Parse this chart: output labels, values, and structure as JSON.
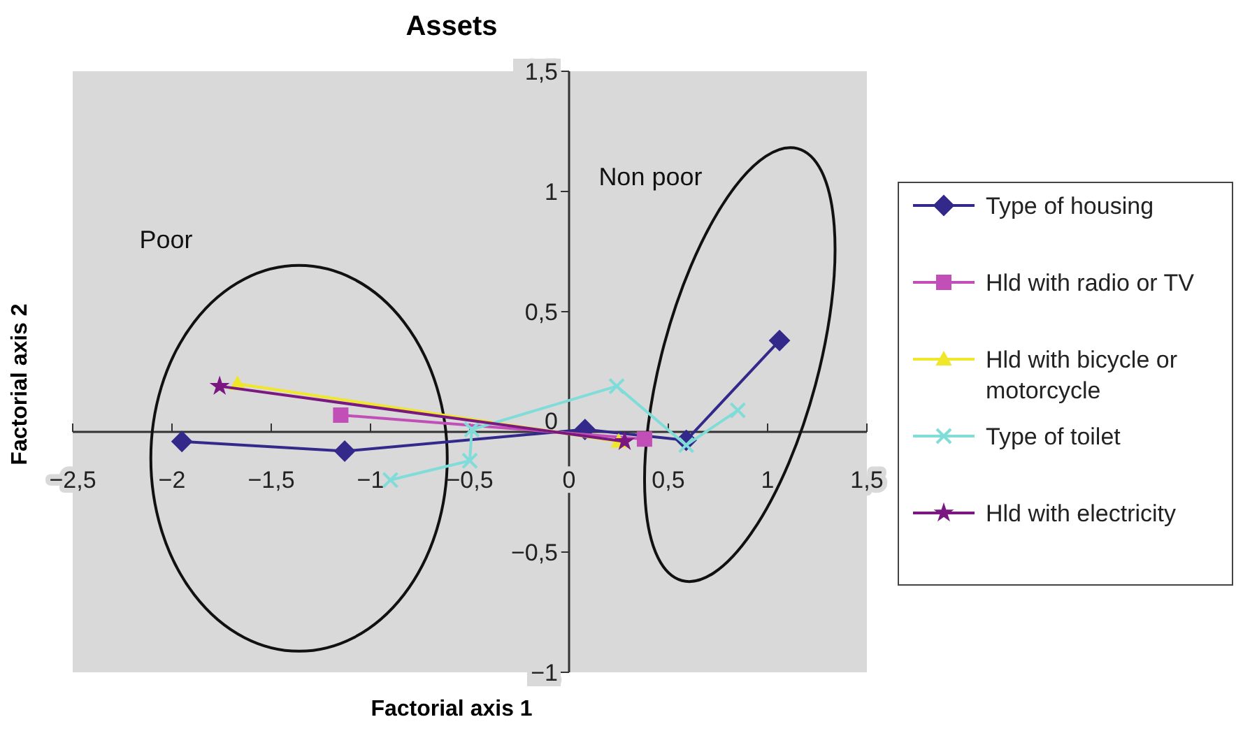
{
  "chart_data": {
    "type": "line",
    "title": "Assets",
    "xlabel": "Factorial axis 1",
    "ylabel": "Factorial axis 2",
    "annotations": [
      "Poor",
      "Non poor"
    ],
    "series": [
      {
        "name": "Type of housing",
        "color": "#33298a",
        "marker": "diamond",
        "x": [
          -1.95,
          -1.13,
          0.08,
          0.59,
          1.06
        ],
        "values": [
          -0.04,
          -0.08,
          0.01,
          -0.035,
          0.38
        ]
      },
      {
        "name": "Hld with radio or TV",
        "color": "#c24fb8",
        "marker": "square",
        "x": [
          -1.15,
          0.38
        ],
        "values": [
          0.07,
          -0.03
        ]
      },
      {
        "name": "Hld with bicycle or motorcycle",
        "color": "#f0e62a",
        "marker": "triangle",
        "x": [
          -1.67,
          0.25
        ],
        "values": [
          0.2,
          -0.04
        ]
      },
      {
        "name": "Type of toilet",
        "color": "#80dcd8",
        "marker": "cross",
        "x": [
          -0.9,
          -0.5,
          -0.49,
          0.24,
          0.59,
          0.85
        ],
        "values": [
          -0.2,
          -0.12,
          0.01,
          0.19,
          -0.055,
          0.09
        ]
      },
      {
        "name": "Hld with electricity",
        "color": "#7a1780",
        "marker": "star",
        "x": [
          -1.76,
          0.28
        ],
        "values": [
          0.19,
          -0.04
        ]
      }
    ],
    "xlim": [
      -2.5,
      1.5
    ],
    "xticks": [
      {
        "value": -2.5,
        "label": "−2,5"
      },
      {
        "value": -2,
        "label": "−2"
      },
      {
        "value": -1.5,
        "label": "−1,5"
      },
      {
        "value": -1,
        "label": "−1"
      },
      {
        "value": -0.5,
        "label": "−0,5"
      },
      0,
      {
        "value": 0.5,
        "label": "0,5"
      },
      1,
      {
        "value": 1.5,
        "label": "1,5"
      }
    ],
    "ylim": [
      -1,
      1.5
    ],
    "yticks": [
      {
        "value": -1,
        "label": "−1"
      },
      {
        "value": -0.5,
        "label": "−0,5"
      },
      0,
      {
        "value": 0.5,
        "label": "0,5"
      },
      1,
      {
        "value": 1.5,
        "label": "1,5"
      }
    ],
    "legend": "right",
    "line_style": "solid"
  }
}
